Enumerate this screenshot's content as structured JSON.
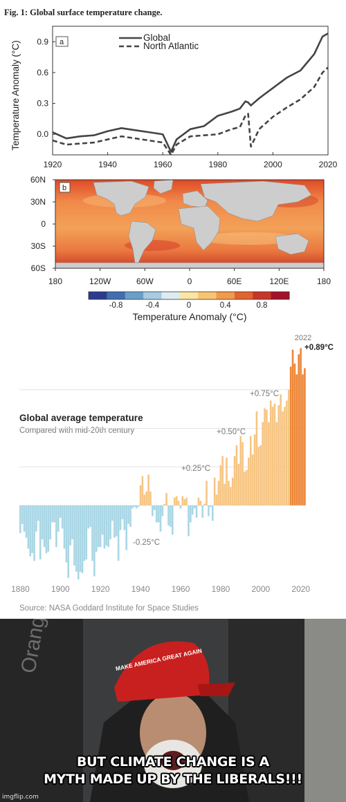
{
  "figure_title": "Fig. 1: Global surface temperature change.",
  "chart_data": [
    {
      "panel_label": "a",
      "type": "line",
      "ylabel": "Temperature Anomaly (°C)",
      "xlim": [
        1920,
        2020
      ],
      "ylim": [
        -0.2,
        1.05
      ],
      "x_ticks": [
        "1920",
        "1940",
        "1960",
        "1980",
        "2000",
        "2020"
      ],
      "y_ticks": [
        "0.0",
        "0.3",
        "0.6",
        "0.9"
      ],
      "legend_position": "top-center",
      "x": [
        1920,
        1925,
        1930,
        1935,
        1940,
        1945,
        1950,
        1955,
        1960,
        1963,
        1965,
        1970,
        1975,
        1980,
        1985,
        1988,
        1990,
        1991,
        1992,
        1995,
        2000,
        2005,
        2010,
        2015,
        2018,
        2020
      ],
      "series": [
        {
          "name": "Global",
          "style": "solid",
          "values": [
            0.02,
            -0.04,
            -0.02,
            -0.01,
            0.03,
            0.06,
            0.04,
            0.02,
            0.0,
            -0.17,
            -0.05,
            0.05,
            0.08,
            0.18,
            0.22,
            0.25,
            0.32,
            0.31,
            0.28,
            0.35,
            0.45,
            0.55,
            0.62,
            0.78,
            0.95,
            0.98
          ]
        },
        {
          "name": "North Atlantic",
          "style": "dashed",
          "values": [
            -0.06,
            -0.1,
            -0.09,
            -0.08,
            -0.05,
            -0.02,
            -0.04,
            -0.06,
            -0.08,
            -0.2,
            -0.1,
            -0.02,
            -0.01,
            0.0,
            0.05,
            0.07,
            0.18,
            0.2,
            -0.12,
            0.05,
            0.17,
            0.26,
            0.34,
            0.46,
            0.6,
            0.65
          ]
        }
      ]
    },
    {
      "panel_label": "b",
      "type": "heatmap",
      "x_ticks": [
        "180",
        "120W",
        "60W",
        "0",
        "60E",
        "120E",
        "180"
      ],
      "y_ticks": [
        "60N",
        "30N",
        "0",
        "30S",
        "60S"
      ],
      "colorbar_label": "Temperature Anomaly (°C)",
      "colorbar_ticks": [
        "-0.8",
        "-0.4",
        "0",
        "0.4",
        "0.8"
      ],
      "colorbar_colors": [
        "#2b3b8f",
        "#3f6fb0",
        "#6a9fcb",
        "#a7cbe2",
        "#dcecf3",
        "#fbe5a3",
        "#f9c472",
        "#f29a4b",
        "#e3632e",
        "#c9342a",
        "#a50f27"
      ]
    },
    {
      "type": "bar",
      "title": "Global average temperature",
      "subtitle": "Compared with mid-20th century",
      "source": "Source: NASA Goddard Institute for Space Studies",
      "x_ticks": [
        "1880",
        "1900",
        "1920",
        "1940",
        "1960",
        "1980",
        "2000",
        "2020"
      ],
      "reference_labels": [
        "-0.25°C",
        "+0.25°C",
        "+0.50°C",
        "+0.75°C"
      ],
      "last_year_label": "2022",
      "last_value_label": "+0.89°C",
      "colors": {
        "negative": "#a9d6e5",
        "positive": "#f6c583",
        "recent": "#ec8637"
      },
      "x_start": 1880,
      "values": [
        -0.18,
        -0.12,
        -0.17,
        -0.21,
        -0.28,
        -0.33,
        -0.31,
        -0.36,
        -0.17,
        -0.1,
        -0.35,
        -0.22,
        -0.27,
        -0.31,
        -0.3,
        -0.22,
        -0.11,
        -0.11,
        -0.27,
        -0.17,
        -0.08,
        -0.15,
        -0.28,
        -0.37,
        -0.47,
        -0.26,
        -0.22,
        -0.39,
        -0.43,
        -0.48,
        -0.43,
        -0.44,
        -0.36,
        -0.35,
        -0.15,
        -0.14,
        -0.36,
        -0.46,
        -0.3,
        -0.27,
        -0.27,
        -0.19,
        -0.28,
        -0.26,
        -0.27,
        -0.22,
        -0.1,
        -0.21,
        -0.2,
        -0.36,
        -0.16,
        -0.09,
        -0.16,
        -0.29,
        -0.12,
        -0.14,
        -0.02,
        -0.01,
        -0.02,
        -0.01,
        0.13,
        0.19,
        0.07,
        0.09,
        0.2,
        0.09,
        -0.07,
        -0.03,
        -0.11,
        -0.11,
        -0.17,
        -0.07,
        0.01,
        0.08,
        -0.13,
        -0.14,
        -0.19,
        0.05,
        0.06,
        0.03,
        -0.02,
        0.06,
        0.04,
        0.05,
        -0.2,
        -0.11,
        -0.06,
        -0.02,
        -0.08,
        0.05,
        0.03,
        -0.08,
        0.01,
        0.16,
        -0.07,
        -0.01,
        -0.1,
        0.18,
        0.07,
        0.16,
        0.26,
        0.32,
        0.14,
        0.31,
        0.16,
        0.12,
        0.18,
        0.32,
        0.39,
        0.27,
        0.45,
        0.41,
        0.22,
        0.23,
        0.31,
        0.45,
        0.33,
        0.46,
        0.61,
        0.38,
        0.39,
        0.54,
        0.63,
        0.62,
        0.54,
        0.68,
        0.64,
        0.66,
        0.54,
        0.65,
        0.72,
        0.61,
        0.64,
        0.68,
        0.75,
        0.9,
        1.01,
        0.92,
        0.85,
        0.98,
        1.02,
        0.85,
        0.89
      ]
    }
  ],
  "meme": {
    "hat_text": "MAKE AMERICA GREAT AGAIN",
    "caption_line1": "BUT CLIMATE CHANGE IS A",
    "caption_line2": "MYTH MADE UP BY THE LIBERALS!!!",
    "watermark": "imgflip.com"
  }
}
